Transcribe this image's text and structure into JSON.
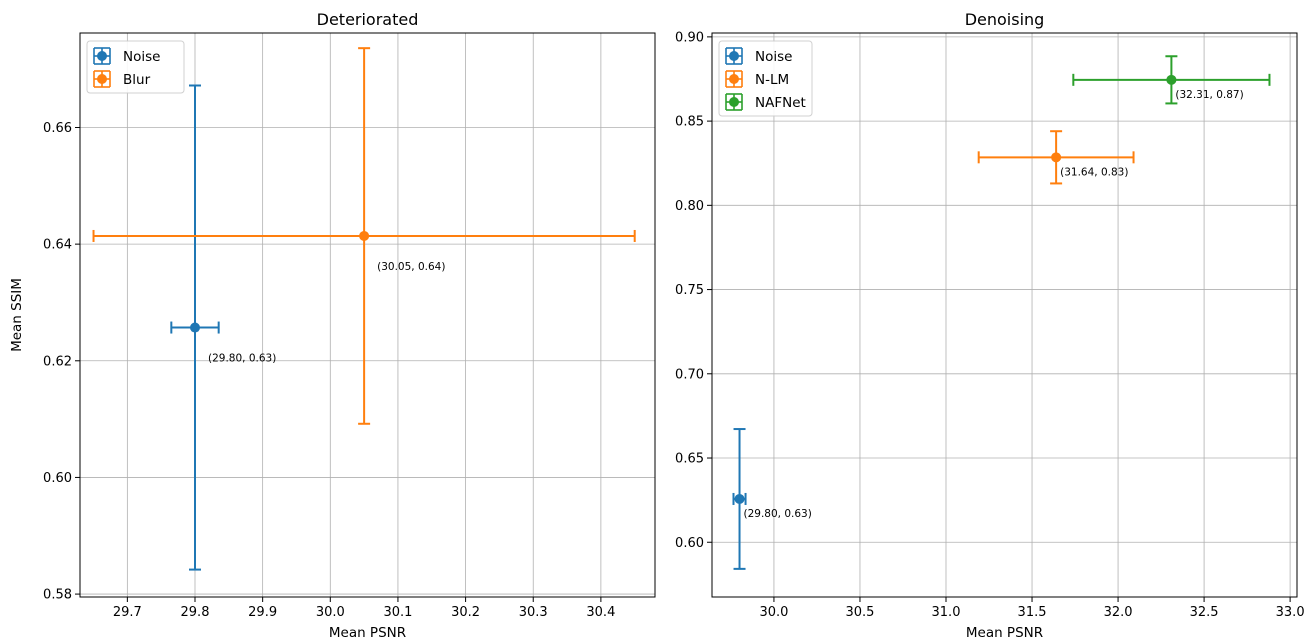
{
  "chart_data": [
    {
      "type": "scatter",
      "title": "Deteriorated",
      "xlabel": "Mean PSNR",
      "ylabel": "Mean SSIM",
      "xlim": [
        29.63,
        30.48
      ],
      "ylim": [
        0.5795,
        0.6762
      ],
      "xticks": [
        "29.7",
        "29.8",
        "29.9",
        "30.0",
        "30.1",
        "30.2",
        "30.3",
        "30.4"
      ],
      "yticks": [
        "0.58",
        "0.60",
        "0.62",
        "0.64",
        "0.66"
      ],
      "grid": true,
      "legend": "upper-left",
      "series": [
        {
          "name": "Noise",
          "color": "#1f77b4",
          "x": 29.8,
          "y": 0.6257,
          "xerr": 0.035,
          "yerr": 0.0415,
          "label": "(29.80, 0.63)"
        },
        {
          "name": "Blur",
          "color": "#ff7f0e",
          "x": 30.05,
          "y": 0.6414,
          "xerr": 0.4,
          "yerr": 0.0322,
          "label": "(30.05, 0.64)"
        }
      ]
    },
    {
      "type": "scatter",
      "title": "Denoising",
      "xlabel": "Mean PSNR",
      "ylabel": "",
      "xlim": [
        29.64,
        33.04
      ],
      "ylim": [
        0.5675,
        0.9023
      ],
      "xticks": [
        "30.0",
        "30.5",
        "31.0",
        "31.5",
        "32.0",
        "32.5",
        "33.0"
      ],
      "yticks": [
        "0.60",
        "0.65",
        "0.70",
        "0.75",
        "0.80",
        "0.85",
        "0.90"
      ],
      "grid": true,
      "legend": "upper-left",
      "series": [
        {
          "name": "Noise",
          "color": "#1f77b4",
          "x": 29.8,
          "y": 0.6257,
          "xerr": 0.035,
          "yerr": 0.0415,
          "label": "(29.80, 0.63)"
        },
        {
          "name": "N-LM",
          "color": "#ff7f0e",
          "x": 31.64,
          "y": 0.8285,
          "xerr": 0.45,
          "yerr": 0.0155,
          "label": "(31.64, 0.83)"
        },
        {
          "name": "NAFNet",
          "color": "#2ca02c",
          "x": 32.31,
          "y": 0.8745,
          "xerr": 0.57,
          "yerr": 0.014,
          "label": "(32.31, 0.87)"
        }
      ]
    }
  ]
}
